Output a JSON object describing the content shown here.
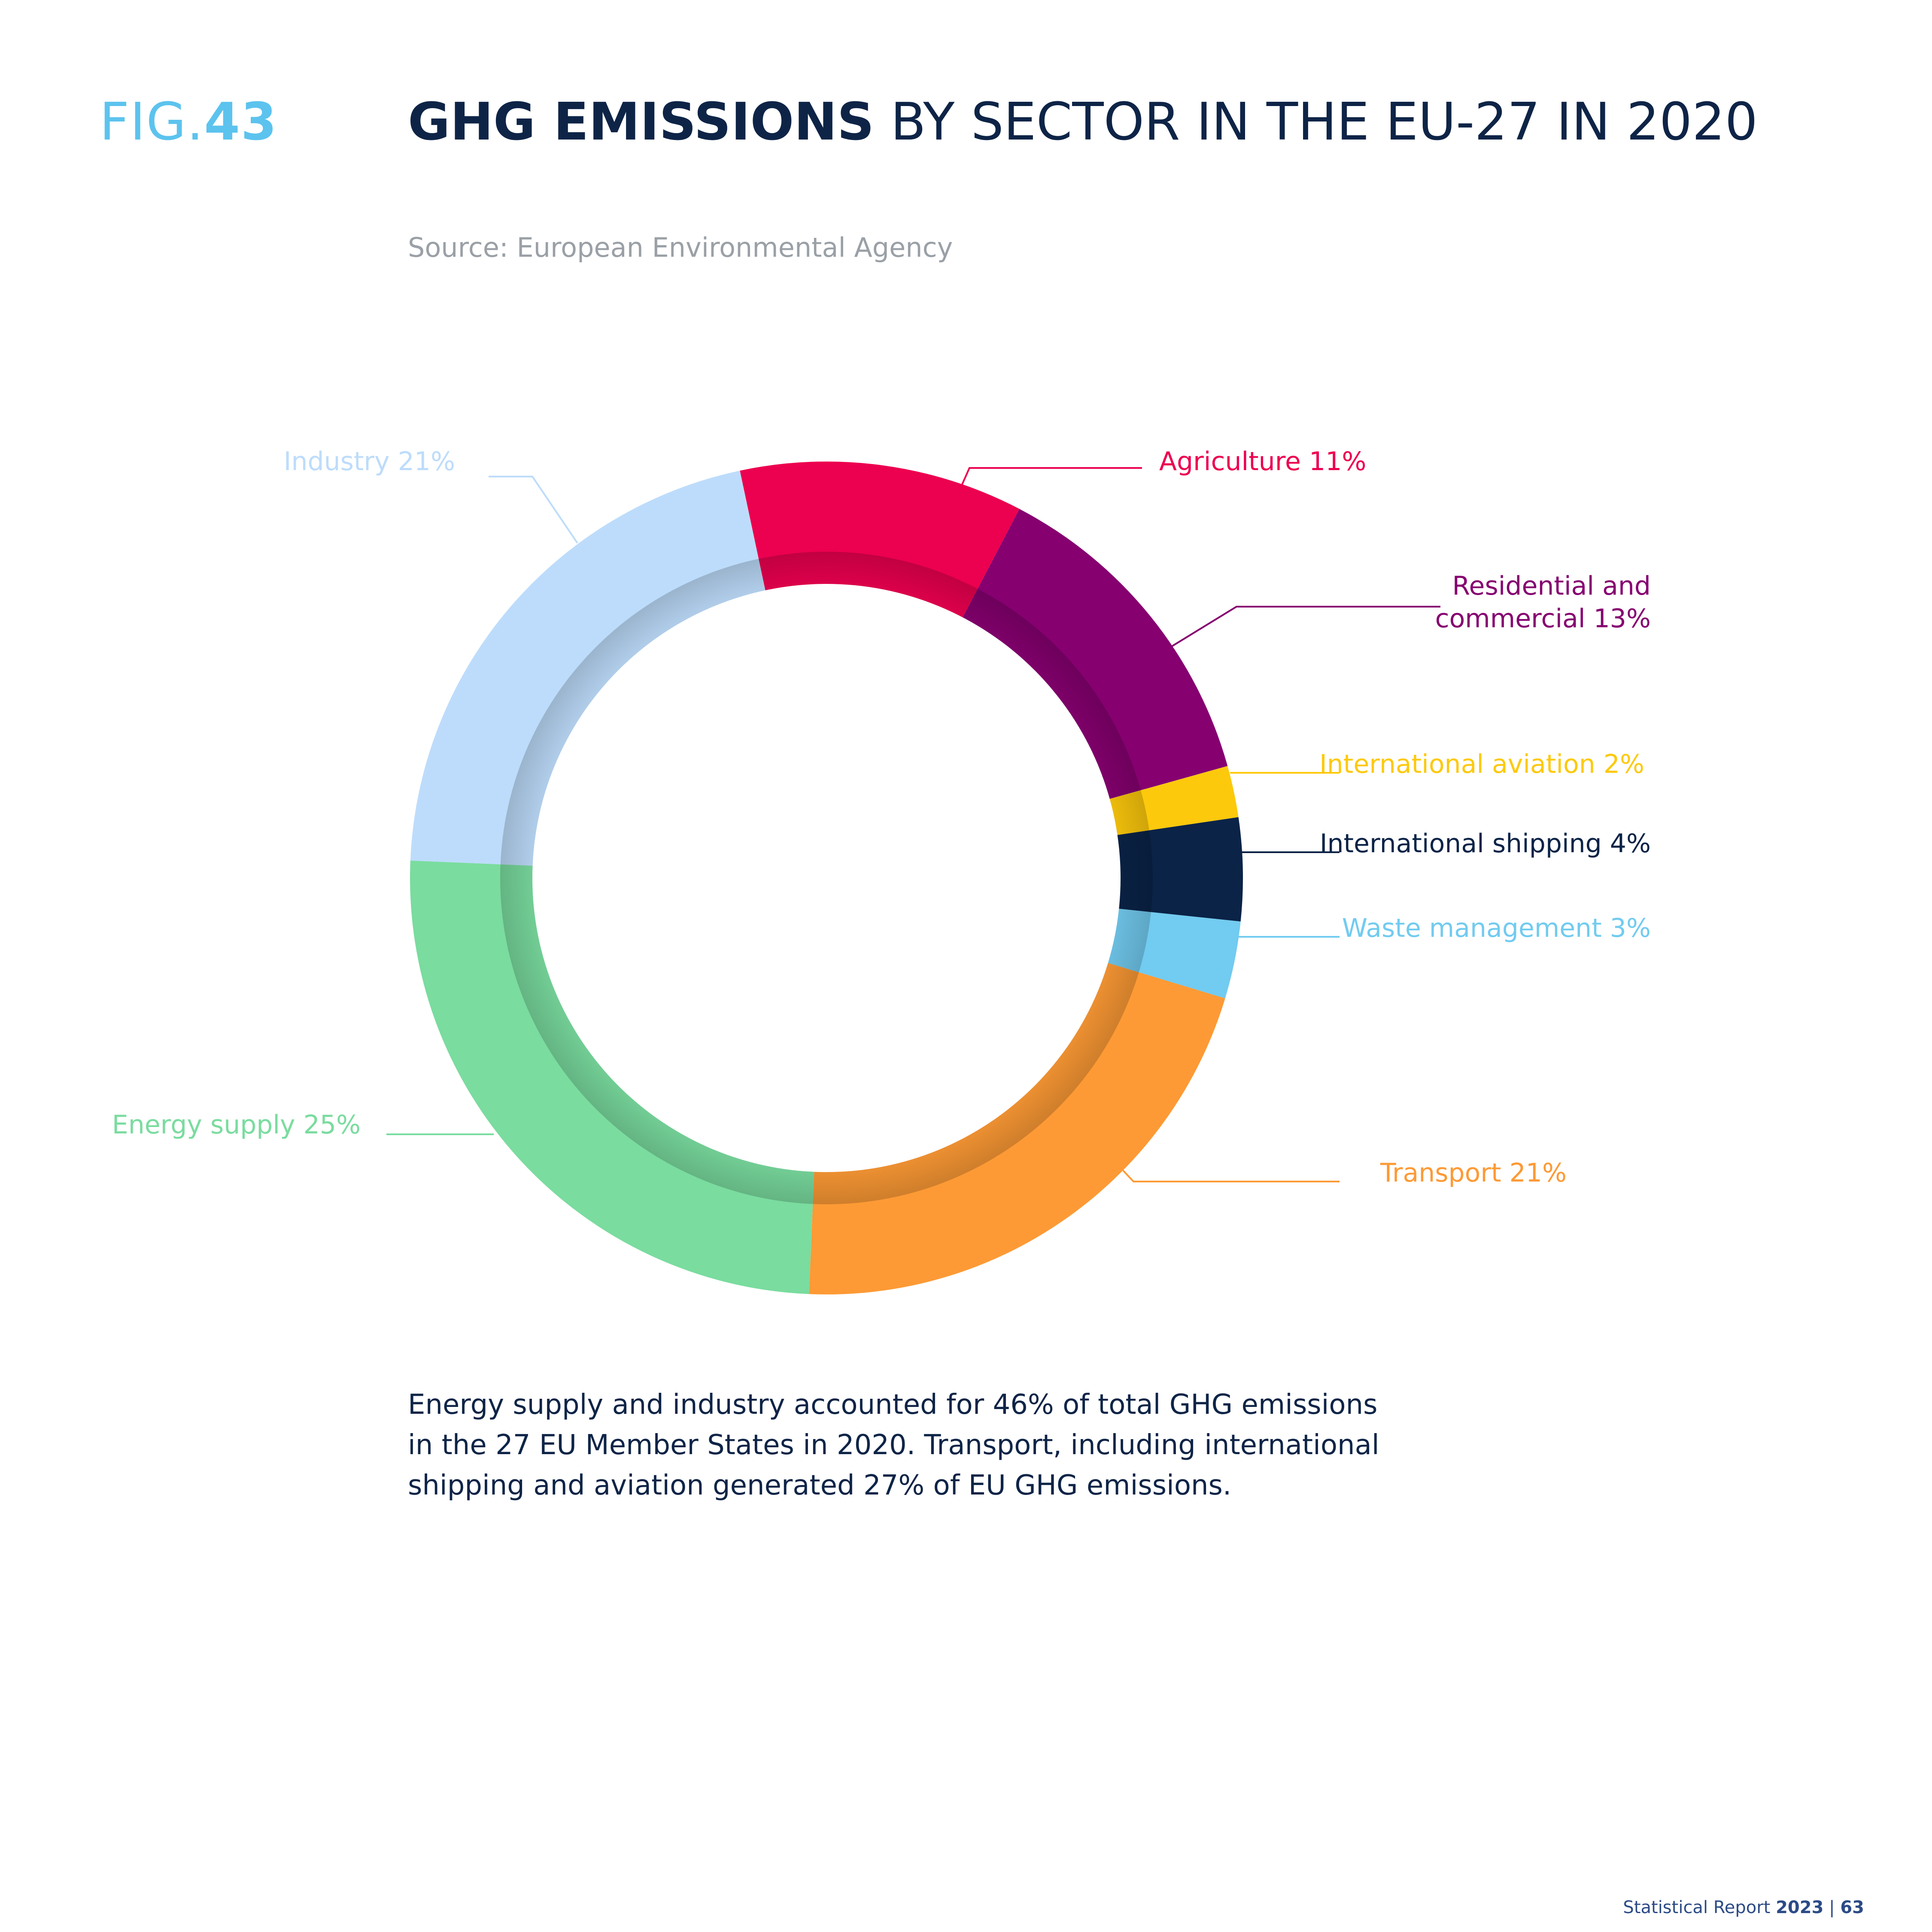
{
  "figure": {
    "prefix": "FIG.",
    "number": "43"
  },
  "title": {
    "bold": "GHG EMISSIONS",
    "rest": " BY SECTOR IN THE EU-27 IN 2020"
  },
  "source": "Source: European Environmental Agency",
  "caption": "Energy supply and industry accounted for 46% of total GHG emissions in the 27 EU Member States in 2020. Transport, including international shipping and aviation generated 27% of EU GHG emissions.",
  "footer": {
    "prefix": "Statistical Report ",
    "year": "2023",
    "sep": " | ",
    "page": "63"
  },
  "chart_data": {
    "type": "pie",
    "donut": true,
    "slices": [
      {
        "name": "Agriculture",
        "value": 11,
        "label": "Agriculture 11%",
        "color": "#ec0050"
      },
      {
        "name": "Residential and commercial",
        "value": 13,
        "label": [
          "Residential and",
          "commercial 13%"
        ],
        "color": "#860070"
      },
      {
        "name": "International aviation",
        "value": 2,
        "label": "International aviation 2%",
        "color": "#fdc90c"
      },
      {
        "name": "International shipping",
        "value": 4,
        "label": "International shipping 4%",
        "color": "#0a2347"
      },
      {
        "name": "Waste management",
        "value": 3,
        "label": "Waste management 3%",
        "color": "#72cbf0"
      },
      {
        "name": "Transport",
        "value": 21,
        "label": "Transport 21%",
        "color": "#fd9a35"
      },
      {
        "name": "Energy supply",
        "value": 25,
        "label": "Energy supply 25%",
        "color": "#7adc9f"
      },
      {
        "name": "Industry",
        "value": 21,
        "label": "Industry 21%",
        "color": "#bddcfb"
      }
    ]
  }
}
